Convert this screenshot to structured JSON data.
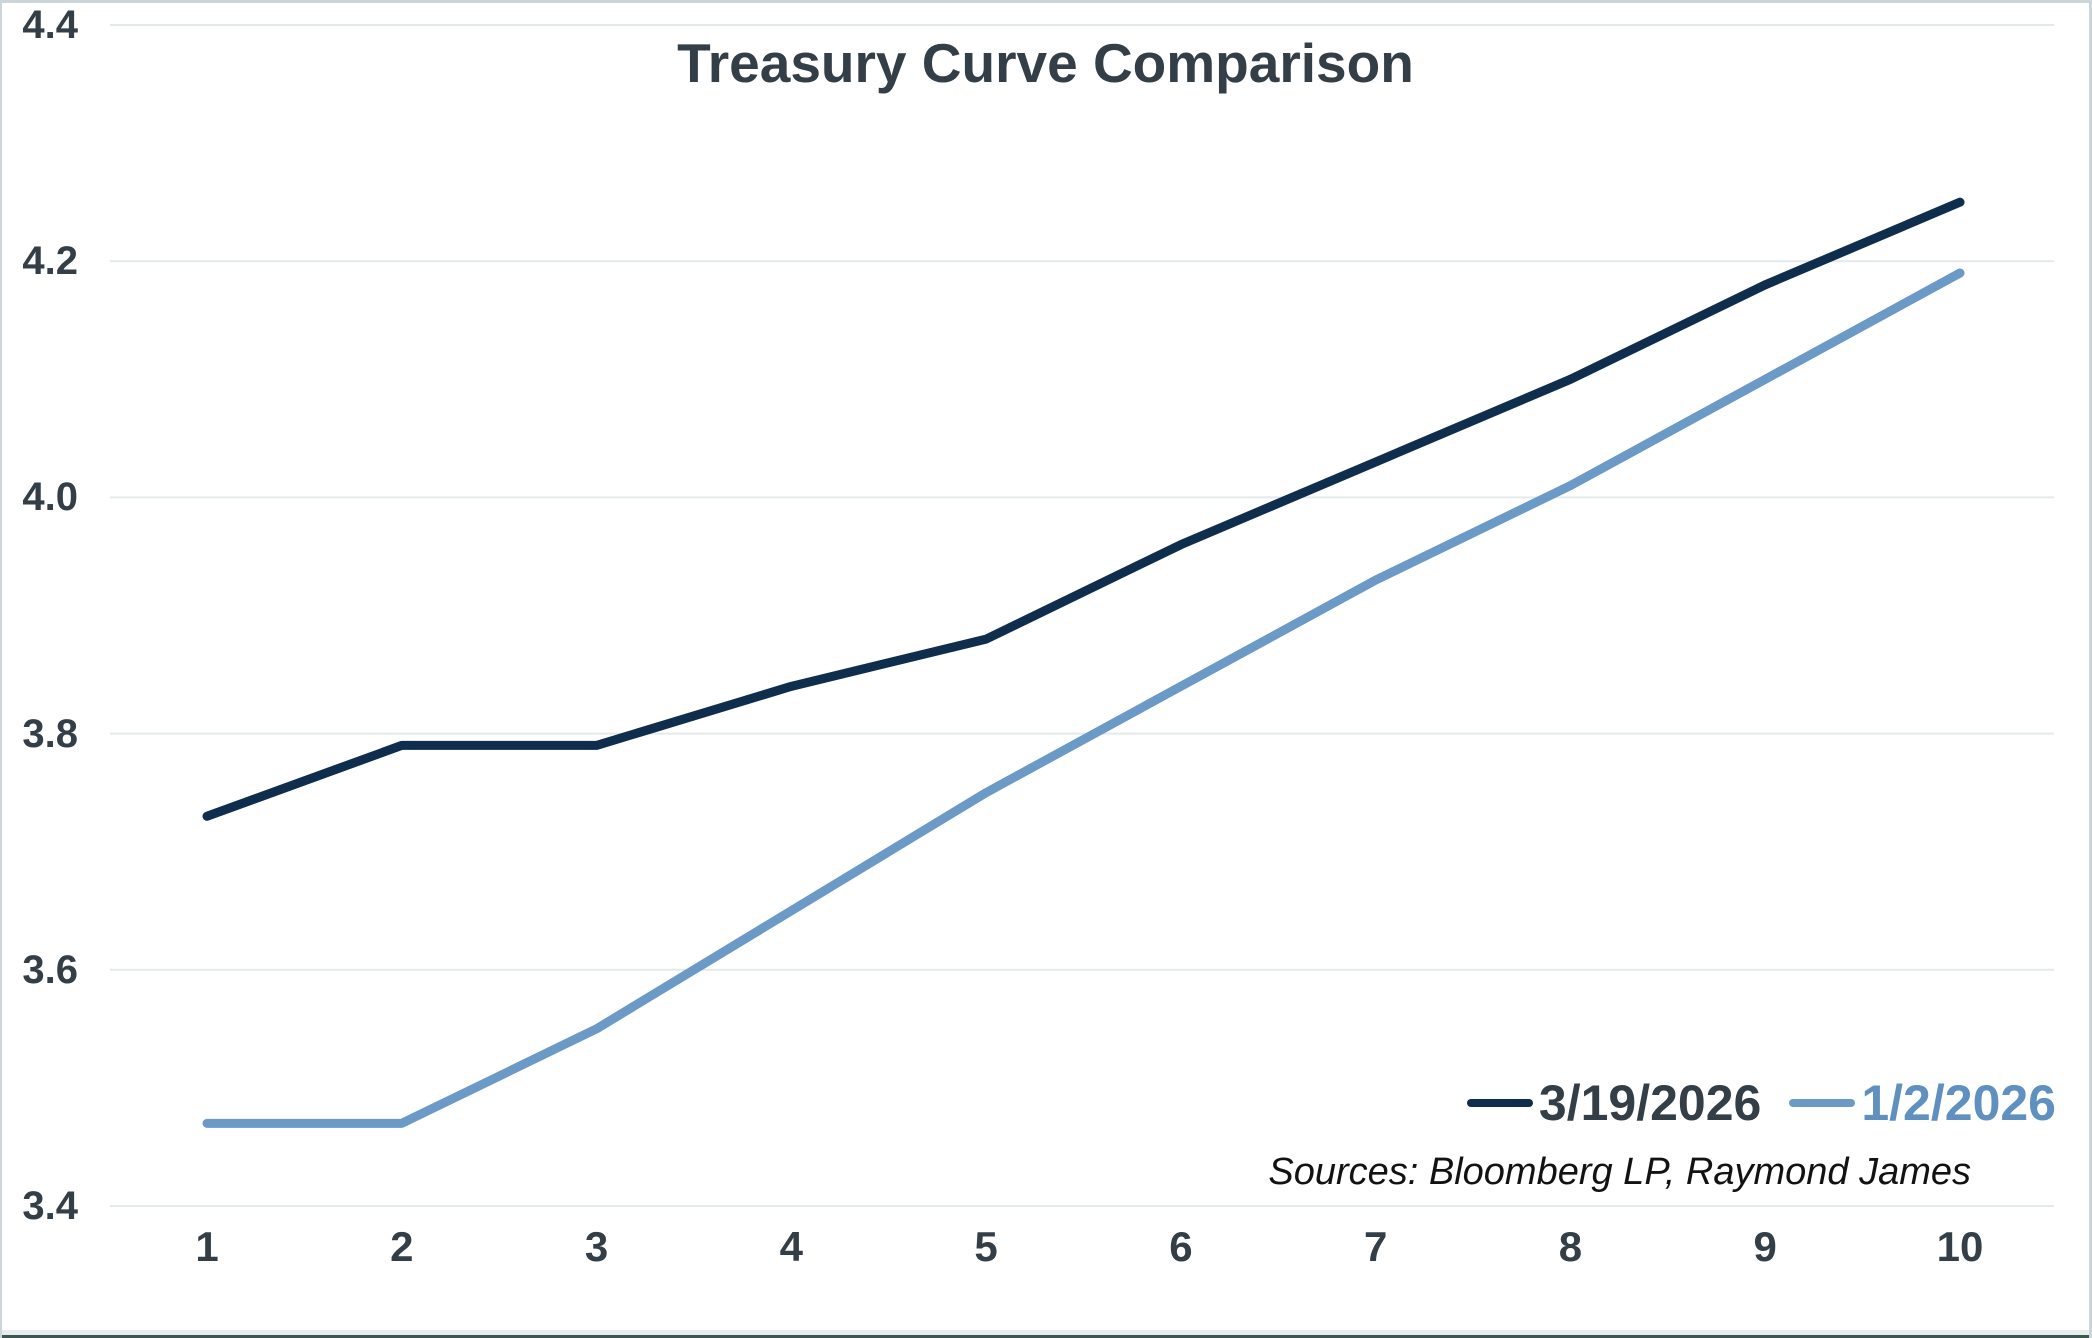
{
  "title": "Treasury Curve Comparison",
  "source_note": "Sources: Bloomberg LP, Raymond James",
  "colors": {
    "series_dark": "#0f2d4c",
    "series_light": "#6b9ac6",
    "text_dark": "#333e47",
    "gridline": "#e4e9ec",
    "frame_border": "#ccd5d9",
    "bottom_edge": "#3c574f"
  },
  "legend": [
    {
      "label": "3/19/2026",
      "color": "#0f2d4c",
      "text_color": "#333e47"
    },
    {
      "label": "1/2/2026",
      "color": "#6b9ac6",
      "text_color": "#5f90c0"
    }
  ],
  "chart_data": {
    "type": "line",
    "title": "Treasury Curve Comparison",
    "xlabel": "",
    "ylabel": "",
    "categories": [
      1,
      2,
      3,
      4,
      5,
      6,
      7,
      8,
      9,
      10
    ],
    "series": [
      {
        "name": "3/19/2026",
        "color": "#0f2d4c",
        "values": [
          3.73,
          3.79,
          3.79,
          3.84,
          3.88,
          3.96,
          4.03,
          4.1,
          4.18,
          4.25
        ]
      },
      {
        "name": "1/2/2026",
        "color": "#6b9ac6",
        "values": [
          3.47,
          3.47,
          3.55,
          3.65,
          3.75,
          3.84,
          3.93,
          4.01,
          4.1,
          4.19
        ]
      }
    ],
    "ylim": [
      3.4,
      4.4
    ],
    "y_ticks": [
      3.4,
      3.6,
      3.8,
      4.0,
      4.2,
      4.4
    ],
    "grid": "horizontal-only",
    "legend_position": "inside-bottom-right",
    "source": "Sources: Bloomberg LP, Raymond James"
  }
}
